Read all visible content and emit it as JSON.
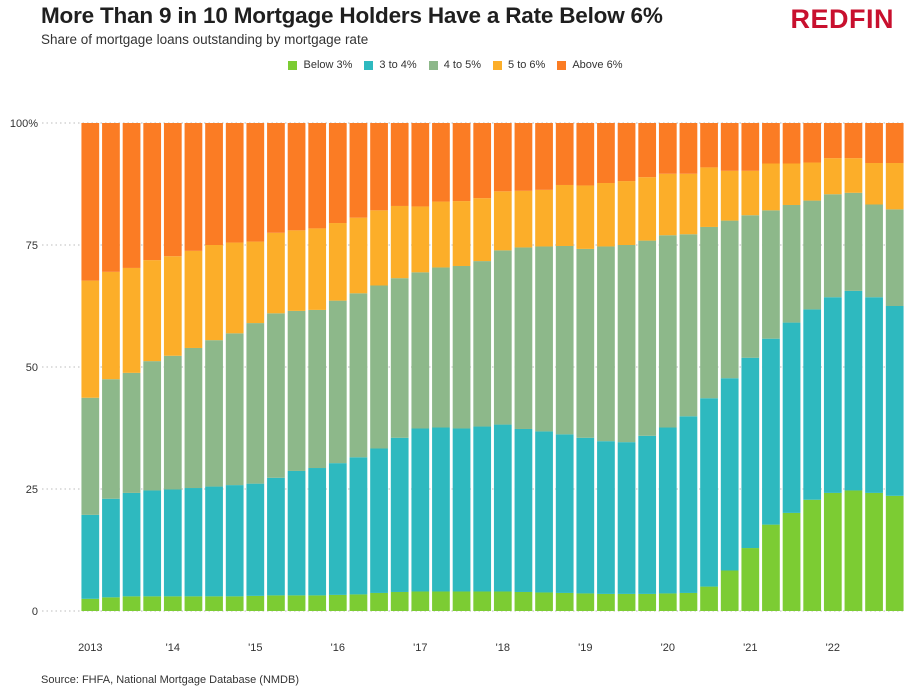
{
  "header": {
    "title": "More Than 9 in 10 Mortgage Holders Have a Rate Below 6%",
    "subtitle": "Share of mortgage loans outstanding by mortgage rate",
    "logo": "REDFIN",
    "logo_color": "#c8102e"
  },
  "footer": {
    "source": "Source: FHFA, National Mortgage Database (NMDB)"
  },
  "chart_data": {
    "type": "bar",
    "stacked": true,
    "title": "More Than 9 in 10 Mortgage Holders Have a Rate Below 6%",
    "subtitle": "Share of mortgage loans outstanding by mortgage rate",
    "xlabel": "",
    "ylabel": "",
    "ylim": [
      0,
      100
    ],
    "y_ticks": [
      0,
      25,
      50,
      75,
      100
    ],
    "y_tick_labels": [
      "0",
      "25",
      "50",
      "75",
      "100%"
    ],
    "x_tick_labels": [
      "2013",
      "'14",
      "'15",
      "'16",
      "'17",
      "'18",
      "'19",
      "'20",
      "'21",
      "'22"
    ],
    "x_tick_every": 4,
    "grid": "horizontal dotted",
    "legend_position": "top",
    "categories": [
      "2013 Q1",
      "2013 Q2",
      "2013 Q3",
      "2013 Q4",
      "2014 Q1",
      "2014 Q2",
      "2014 Q3",
      "2014 Q4",
      "2015 Q1",
      "2015 Q2",
      "2015 Q3",
      "2015 Q4",
      "2016 Q1",
      "2016 Q2",
      "2016 Q3",
      "2016 Q4",
      "2017 Q1",
      "2017 Q2",
      "2017 Q3",
      "2017 Q4",
      "2018 Q1",
      "2018 Q2",
      "2018 Q3",
      "2018 Q4",
      "2019 Q1",
      "2019 Q2",
      "2019 Q3",
      "2019 Q4",
      "2020 Q1",
      "2020 Q2",
      "2020 Q3",
      "2020 Q4",
      "2021 Q1",
      "2021 Q2",
      "2021 Q3",
      "2021 Q4",
      "2022 Q1",
      "2022 Q2",
      "2022 Q3",
      "2022 Q4"
    ],
    "series": [
      {
        "name": "Below 3%",
        "color": "#7ccc33",
        "values": [
          2.5,
          2.8,
          3.0,
          3.0,
          3.0,
          3.0,
          3.0,
          3.0,
          3.1,
          3.2,
          3.2,
          3.2,
          3.3,
          3.4,
          3.7,
          3.9,
          4.0,
          4.0,
          4.0,
          4.0,
          4.0,
          3.9,
          3.8,
          3.7,
          3.6,
          3.5,
          3.5,
          3.5,
          3.6,
          3.7,
          5.0,
          8.3,
          12.9,
          17.7,
          20.1,
          22.8,
          24.2,
          24.7,
          24.2,
          23.6
        ]
      },
      {
        "name": "3 to 4%",
        "color": "#2eb9bf",
        "values": [
          17.2,
          20.2,
          21.2,
          21.7,
          21.9,
          22.2,
          22.5,
          22.8,
          23.0,
          24.1,
          25.5,
          26.1,
          27.0,
          28.1,
          29.6,
          31.6,
          33.4,
          33.6,
          33.4,
          33.8,
          34.2,
          33.4,
          33.0,
          32.5,
          31.9,
          31.3,
          31.1,
          32.4,
          34.0,
          36.2,
          38.6,
          39.4,
          39.0,
          38.1,
          39.0,
          39.0,
          40.1,
          40.9,
          40.1,
          38.9
        ]
      },
      {
        "name": "4 to 5%",
        "color": "#8db88a",
        "values": [
          24.0,
          24.5,
          24.6,
          26.5,
          27.4,
          28.7,
          30.0,
          31.1,
          32.9,
          33.7,
          32.8,
          32.4,
          33.3,
          33.6,
          33.4,
          32.7,
          32.0,
          32.8,
          33.3,
          33.9,
          35.7,
          37.2,
          37.9,
          38.6,
          38.7,
          39.9,
          40.4,
          40.0,
          39.4,
          37.3,
          35.1,
          32.3,
          29.2,
          26.3,
          24.1,
          22.3,
          21.1,
          20.1,
          19.0,
          19.8
        ]
      },
      {
        "name": "5 to 6%",
        "color": "#fcae29",
        "values": [
          24.0,
          22.0,
          21.5,
          20.7,
          20.4,
          19.9,
          19.5,
          18.6,
          16.7,
          16.5,
          16.5,
          16.7,
          15.9,
          15.5,
          15.4,
          14.8,
          13.5,
          13.5,
          13.3,
          12.9,
          12.1,
          11.6,
          11.6,
          12.5,
          13.0,
          13.0,
          13.1,
          13.0,
          12.6,
          12.4,
          12.2,
          10.2,
          9.1,
          9.6,
          8.5,
          7.8,
          7.4,
          7.1,
          8.5,
          9.5
        ]
      },
      {
        "name": "Above 6%",
        "color": "#fb7c24",
        "values": [
          32.3,
          30.5,
          29.7,
          28.1,
          27.3,
          26.2,
          25.0,
          24.5,
          24.3,
          22.5,
          22.0,
          21.6,
          20.5,
          19.4,
          17.9,
          17.0,
          17.1,
          16.1,
          16.0,
          15.4,
          14.0,
          13.9,
          13.7,
          12.7,
          12.8,
          12.3,
          11.9,
          11.1,
          10.4,
          10.4,
          9.1,
          9.8,
          9.8,
          8.3,
          8.3,
          8.1,
          7.2,
          7.2,
          8.2,
          8.2
        ]
      }
    ]
  }
}
